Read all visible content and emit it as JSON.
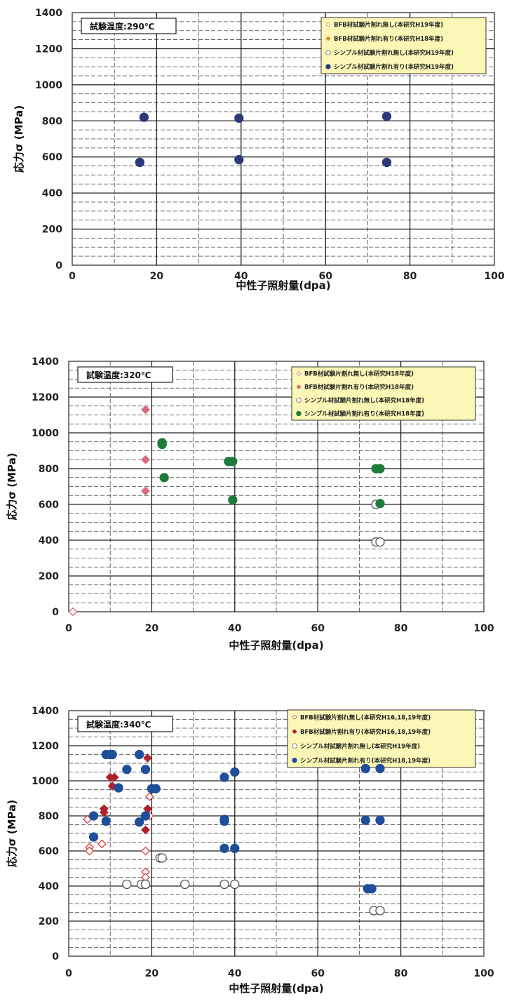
{
  "chart_data": [
    {
      "type": "scatter",
      "condition": "試験温度:290℃",
      "xlabel": "中性子照射量(dpa)",
      "ylabel": "応力σ (MPa)",
      "xlim": [
        0,
        100
      ],
      "ylim": [
        0,
        1400
      ],
      "xticks": [
        "0",
        "20",
        "40",
        "60",
        "80",
        "100"
      ],
      "yticks": [
        "0",
        "200",
        "400",
        "600",
        "800",
        "1000",
        "1200",
        "1400"
      ],
      "grid": true,
      "legend_position": "top-right",
      "series": [
        {
          "name": "BFB材試験片割れ無し(本研究H19年度)",
          "marker": "diamond-open",
          "color": "#e08a2a",
          "points": []
        },
        {
          "name": "BFB材試験片割れ有り(本研究H18年度)",
          "marker": "diamond-filled",
          "color": "#e08a2a",
          "points": []
        },
        {
          "name": "シンプル材試験片割れ無し(本研究H19年度)",
          "marker": "circle-open",
          "color": "#333333",
          "points": []
        },
        {
          "name": "シンプル材試験片割れ有り(本研究H19年度)",
          "marker": "circle-filled",
          "color": "#2c3a7a",
          "points": [
            [
              17,
              820
            ],
            [
              16,
              570
            ],
            [
              39.5,
              815
            ],
            [
              39.5,
              585
            ],
            [
              74.5,
              825
            ],
            [
              74.5,
              570
            ]
          ]
        }
      ]
    },
    {
      "type": "scatter",
      "condition": "試験温度:320℃",
      "xlabel": "中性子照射量(dpa)",
      "ylabel": "応力σ (MPa)",
      "xlim": [
        0,
        100
      ],
      "ylim": [
        0,
        1400
      ],
      "xticks": [
        "0",
        "20",
        "40",
        "60",
        "80",
        "100"
      ],
      "yticks": [
        "0",
        "200",
        "400",
        "600",
        "800",
        "1000",
        "1200",
        "1400"
      ],
      "grid": true,
      "legend_position": "top-right",
      "series": [
        {
          "name": "BFB材試験片割れ無し(本研究H18年度)",
          "marker": "diamond-open",
          "color": "#d86b7e",
          "points": [
            [
              1,
              0
            ]
          ]
        },
        {
          "name": "BFB材試験片割れ有り(本研究H18年度)",
          "marker": "diamond-filled",
          "color": "#d86b7e",
          "points": [
            [
              18.5,
              1130
            ],
            [
              18.5,
              850
            ],
            [
              18.5,
              675
            ]
          ]
        },
        {
          "name": "シンプル材試験片割れ無し(本研究H18年度)",
          "marker": "circle-open",
          "color": "#333333",
          "points": [
            [
              74,
              600
            ],
            [
              74,
              390
            ],
            [
              75,
              390
            ]
          ]
        },
        {
          "name": "シンプル材試験片割れ有り(本研究H18年度)",
          "marker": "circle-filled",
          "color": "#1f7a3c",
          "points": [
            [
              22.5,
              945
            ],
            [
              22.5,
              935
            ],
            [
              23,
              750
            ],
            [
              38.5,
              840
            ],
            [
              39.5,
              840
            ],
            [
              39.5,
              625
            ],
            [
              74,
              800
            ],
            [
              75,
              800
            ],
            [
              75,
              605
            ]
          ]
        }
      ]
    },
    {
      "type": "scatter",
      "condition": "試験温度:340℃",
      "xlabel": "中性子照射量(dpa)",
      "ylabel": "応力σ (MPa)",
      "xlim": [
        0,
        100
      ],
      "ylim": [
        0,
        1400
      ],
      "xticks": [
        "0",
        "20",
        "40",
        "60",
        "80",
        "100"
      ],
      "yticks": [
        "0",
        "200",
        "400",
        "600",
        "800",
        "1000",
        "1200",
        "1400"
      ],
      "grid": true,
      "legend_position": "top-right",
      "series": [
        {
          "name": "BFB材試験片割れ無し(本研究H16,18,19年度)",
          "marker": "diamond-open",
          "color": "#d0403f",
          "points": [
            [
              4.5,
              780
            ],
            [
              5,
              620
            ],
            [
              5,
              600
            ],
            [
              8,
              640
            ],
            [
              18.5,
              600
            ],
            [
              18.5,
              480
            ],
            [
              18.5,
              450
            ],
            [
              19.5,
              910
            ],
            [
              19.5,
              800
            ]
          ]
        },
        {
          "name": "BFB材試験片割れ有り(本研究H16,18,19年度)",
          "marker": "diamond-filled",
          "color": "#b0202e",
          "points": [
            [
              8.5,
              840
            ],
            [
              8.5,
              820
            ],
            [
              10,
              1020
            ],
            [
              11,
              1020
            ],
            [
              10.5,
              970
            ],
            [
              19,
              1130
            ],
            [
              19,
              840
            ],
            [
              18.5,
              720
            ]
          ]
        },
        {
          "name": "シンプル材試験片割れ無し(本研究H19年度)",
          "marker": "circle-open",
          "color": "#333333",
          "points": [
            [
              14,
              410
            ],
            [
              17.5,
              410
            ],
            [
              18.5,
              410
            ],
            [
              22,
              560
            ],
            [
              22.5,
              560
            ],
            [
              28,
              410
            ],
            [
              37.5,
              410
            ],
            [
              40,
              410
            ],
            [
              73.5,
              260
            ],
            [
              75,
              260
            ]
          ]
        },
        {
          "name": "シンプル材試験片割れ有り(本研究H18,19年度)",
          "marker": "circle-filled",
          "color": "#1f4f9a",
          "points": [
            [
              9,
              1150
            ],
            [
              10,
              1150
            ],
            [
              10.5,
              1150
            ],
            [
              17,
              1150
            ],
            [
              14,
              1065
            ],
            [
              12,
              960
            ],
            [
              18.5,
              1065
            ],
            [
              20,
              955
            ],
            [
              21,
              955
            ],
            [
              17,
              765
            ],
            [
              18.5,
              800
            ],
            [
              9,
              770
            ],
            [
              6,
              800
            ],
            [
              6,
              680
            ],
            [
              37.5,
              1020
            ],
            [
              40,
              1050
            ],
            [
              37.5,
              780
            ],
            [
              37.5,
              770
            ],
            [
              37.5,
              615
            ],
            [
              40,
              615
            ],
            [
              71.5,
              1070
            ],
            [
              75,
              1070
            ],
            [
              71.5,
              775
            ],
            [
              75,
              775
            ],
            [
              72,
              385
            ],
            [
              73,
              385
            ]
          ]
        }
      ]
    }
  ]
}
